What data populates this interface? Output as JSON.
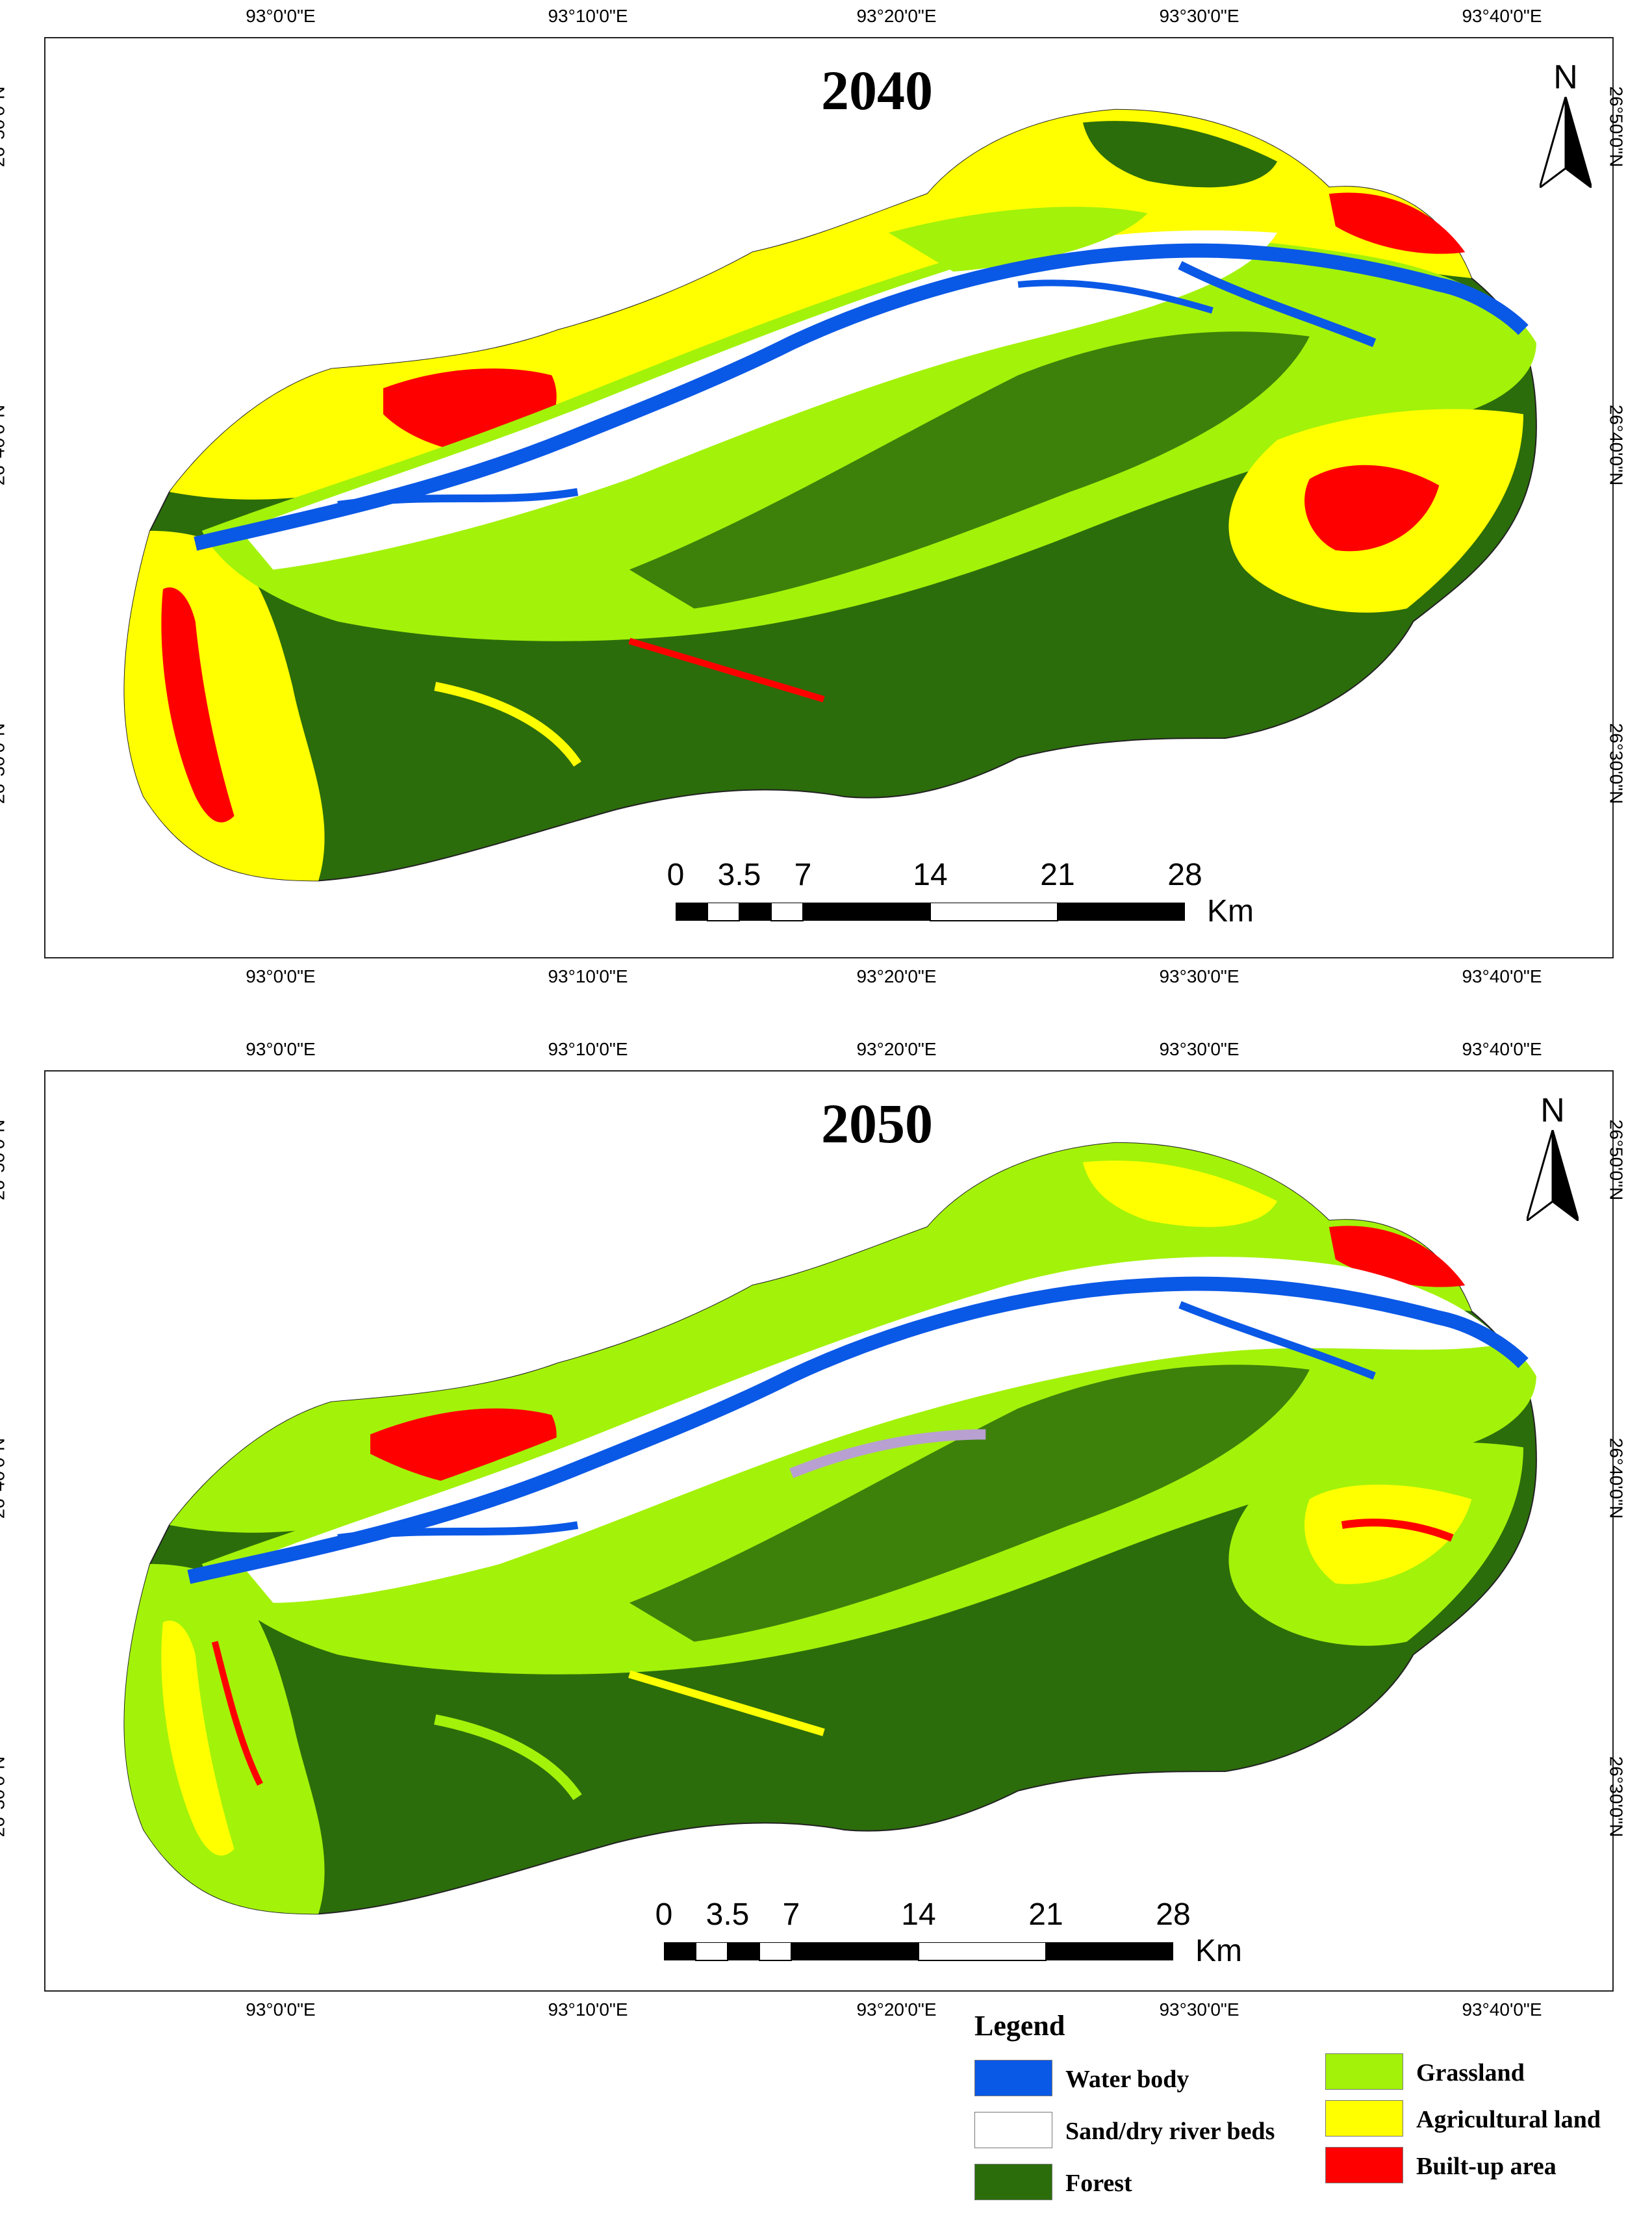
{
  "colors": {
    "water": "#0a58e6",
    "sand": "#ffffff",
    "forest": "#2c6d0b",
    "grass": "#a3f20a",
    "agri": "#ffff00",
    "builtup": "#ff0000"
  },
  "axes": {
    "lon_labels": [
      "93°0'0\"E",
      "93°10'0\"E",
      "93°20'0\"E",
      "93°30'0\"E",
      "93°40'0\"E"
    ],
    "lat_labels": [
      "26°50'0\"N",
      "26°40'0\"N",
      "26°30'0\"N"
    ]
  },
  "panels": [
    {
      "title": "2040"
    },
    {
      "title": "2050"
    }
  ],
  "north_arrow": {
    "label": "N"
  },
  "scale_bar": {
    "ticks": [
      "0",
      "3.5",
      "7",
      "14",
      "21",
      "28"
    ],
    "unit": "Km"
  },
  "legend": {
    "title": "Legend",
    "items": [
      {
        "label": "Water body",
        "color_key": "water"
      },
      {
        "label": "Sand/dry river beds",
        "color_key": "sand"
      },
      {
        "label": "Forest",
        "color_key": "forest"
      },
      {
        "label": "Grassland",
        "color_key": "grass"
      },
      {
        "label": "Agricultural land",
        "color_key": "agri"
      },
      {
        "label": "Built-up area",
        "color_key": "builtup"
      }
    ]
  }
}
